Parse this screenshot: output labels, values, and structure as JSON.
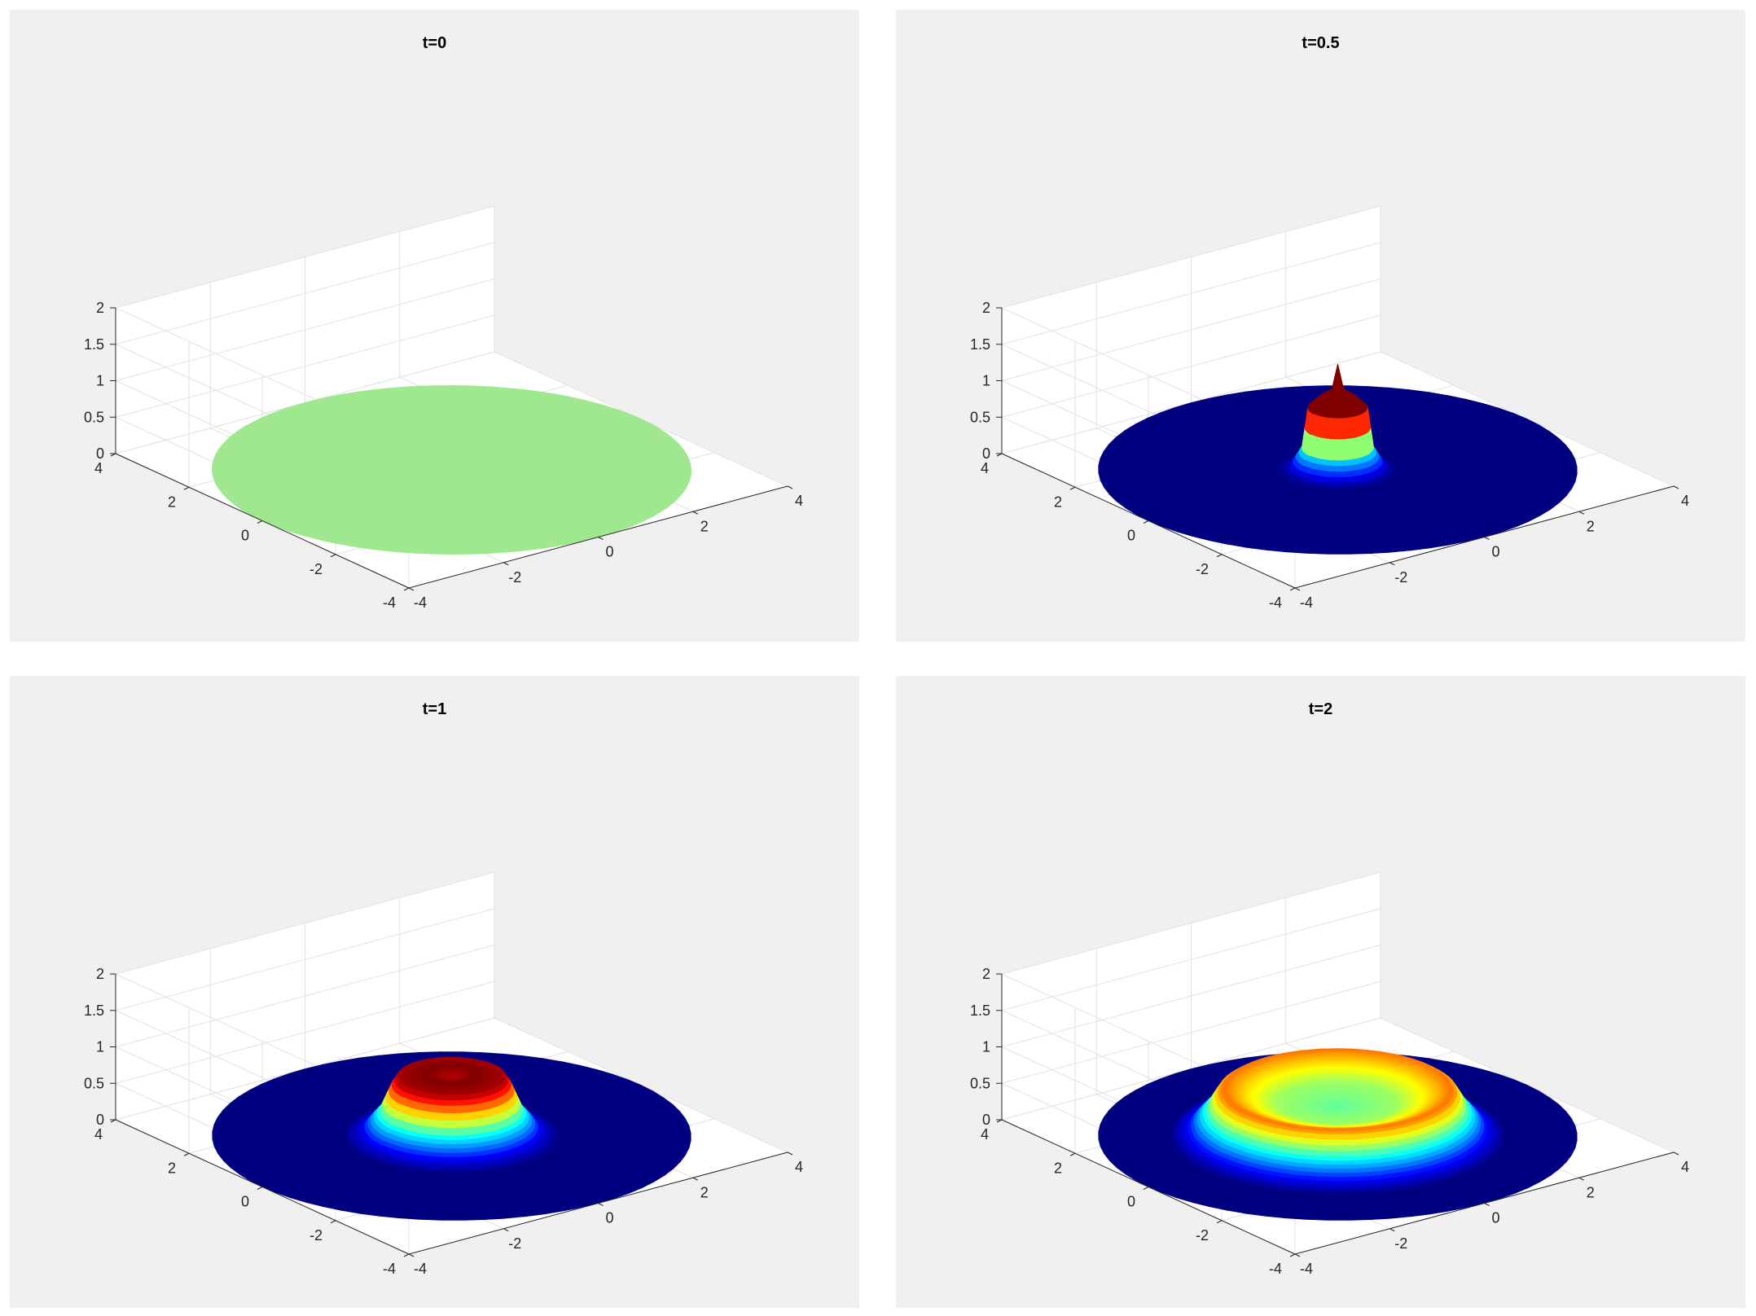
{
  "figure": {
    "colors": {
      "figure_background": "#ffffff",
      "panel_background": "#f0f0f0",
      "axes_background": "#ffffff",
      "grid": "#e2e2e2",
      "axis_line": "#262626",
      "flat_surface": "#9fe88f",
      "colormap": "jet"
    }
  },
  "chart_data": [
    {
      "type": "surface",
      "title": "t=0",
      "xlim": [
        -4,
        4
      ],
      "ylim": [
        -4,
        4
      ],
      "zlim": [
        0,
        2
      ],
      "xticks": [
        "-4",
        "-2",
        "0",
        "2",
        "4"
      ],
      "yticks": [
        "-4",
        "-2",
        "0",
        "2",
        "4"
      ],
      "zticks": [
        "0",
        "0.5",
        "1",
        "1.5",
        "2"
      ],
      "grid": true,
      "domain": "disk, radius ≈ 4",
      "surface": "flat, u = 0 everywhere",
      "profile_r": [
        0,
        1,
        2,
        3,
        4
      ],
      "profile_u": [
        0,
        0,
        0,
        0,
        0
      ]
    },
    {
      "type": "surface",
      "title": "t=0.5",
      "xlim": [
        -4,
        4
      ],
      "ylim": [
        -4,
        4
      ],
      "zlim": [
        0,
        2
      ],
      "xticks": [
        "-4",
        "-2",
        "0",
        "2",
        "4"
      ],
      "yticks": [
        "-4",
        "-2",
        "0",
        "2",
        "4"
      ],
      "zticks": [
        "0",
        "0.5",
        "1",
        "1.5",
        "2"
      ],
      "grid": true,
      "domain": "disk, radius ≈ 4",
      "surface": "narrow central spike",
      "profile_r": [
        0,
        0.1,
        0.3,
        0.5,
        0.6,
        0.8,
        1.0,
        4.0
      ],
      "profile_u": [
        1.45,
        1.1,
        1.0,
        0.85,
        0.3,
        0.05,
        0,
        0
      ]
    },
    {
      "type": "surface",
      "title": "t=1",
      "xlim": [
        -4,
        4
      ],
      "ylim": [
        -4,
        4
      ],
      "zlim": [
        0,
        2
      ],
      "xticks": [
        "-4",
        "-2",
        "0",
        "2",
        "4"
      ],
      "yticks": [
        "-4",
        "-2",
        "0",
        "2",
        "4"
      ],
      "zticks": [
        "0",
        "0.5",
        "1",
        "1.5",
        "2"
      ],
      "grid": true,
      "domain": "disk, radius ≈ 4",
      "surface": "ring with shallow central dip",
      "profile_r": [
        0,
        0.4,
        0.9,
        1.0,
        1.2,
        1.5,
        1.8,
        4.0
      ],
      "profile_u": [
        0.8,
        0.85,
        0.82,
        0.7,
        0.35,
        0.08,
        0,
        0
      ]
    },
    {
      "type": "surface",
      "title": "t=2",
      "xlim": [
        -4,
        4
      ],
      "ylim": [
        -4,
        4
      ],
      "zlim": [
        0,
        2
      ],
      "xticks": [
        "-4",
        "-2",
        "0",
        "2",
        "4"
      ],
      "yticks": [
        "-4",
        "-2",
        "0",
        "2",
        "4"
      ],
      "zticks": [
        "0",
        "0.5",
        "1",
        "1.5",
        "2"
      ],
      "grid": true,
      "domain": "disk, radius ≈ 4",
      "surface": "expanding ring, deeper center",
      "profile_r": [
        0,
        1.0,
        1.5,
        1.9,
        2.0,
        2.2,
        2.5,
        2.8,
        4.0
      ],
      "profile_u": [
        0.4,
        0.45,
        0.55,
        0.65,
        0.6,
        0.35,
        0.1,
        0,
        0
      ]
    }
  ]
}
